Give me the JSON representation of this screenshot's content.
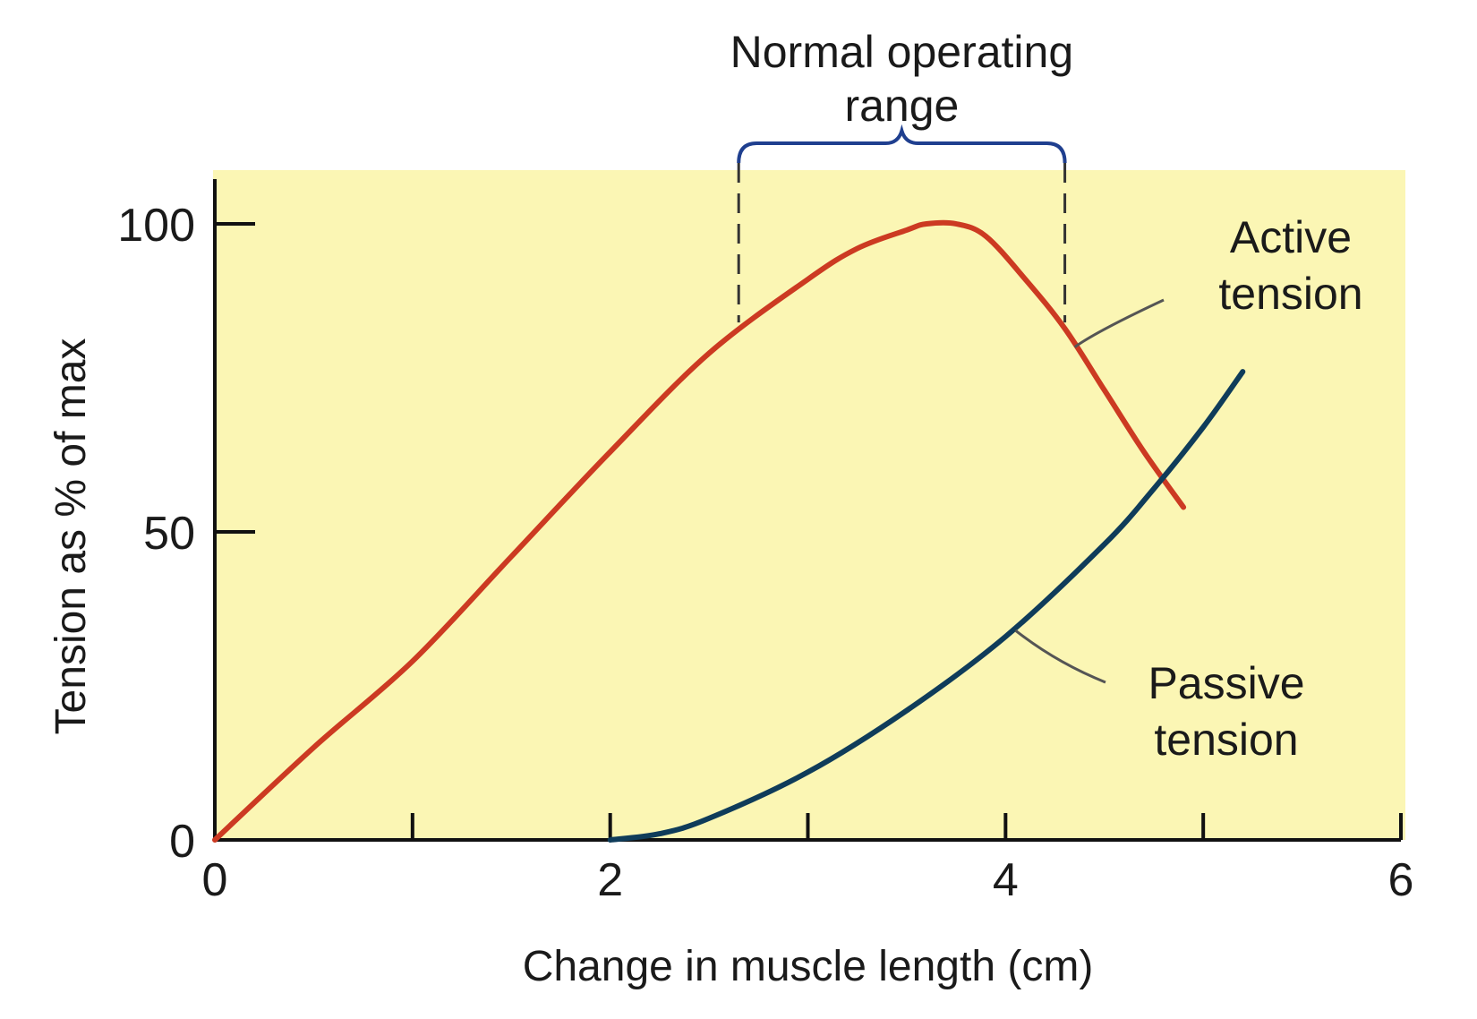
{
  "chart_data": {
    "type": "line",
    "title": "",
    "xlabel": "Change in muscle length (cm)",
    "ylabel": "Tension as % of max",
    "xlim": [
      0,
      6
    ],
    "ylim": [
      0,
      100
    ],
    "x_ticks": [
      0,
      2,
      4,
      6
    ],
    "x_minor_ticks": [
      1,
      3,
      5
    ],
    "y_ticks": [
      0,
      50,
      100
    ],
    "grid": false,
    "legend": "none",
    "background_color": "#fbf6b4",
    "series": [
      {
        "name": "Active tension",
        "color": "#cc3a22",
        "points": [
          [
            0,
            0
          ],
          [
            0.5,
            15
          ],
          [
            1,
            29
          ],
          [
            1.5,
            46
          ],
          [
            2,
            63
          ],
          [
            2.5,
            79
          ],
          [
            3,
            91
          ],
          [
            3.25,
            96
          ],
          [
            3.5,
            99
          ],
          [
            3.6,
            100
          ],
          [
            3.75,
            100
          ],
          [
            3.9,
            98
          ],
          [
            4.1,
            91
          ],
          [
            4.3,
            83
          ],
          [
            4.5,
            73
          ],
          [
            4.7,
            63
          ],
          [
            4.9,
            54
          ]
        ]
      },
      {
        "name": "Passive tension",
        "color": "#0f3c5a",
        "points": [
          [
            2,
            0
          ],
          [
            2.25,
            1
          ],
          [
            2.5,
            3.5
          ],
          [
            3,
            11
          ],
          [
            3.5,
            21
          ],
          [
            4,
            33
          ],
          [
            4.5,
            48
          ],
          [
            4.75,
            57
          ],
          [
            5,
            67
          ],
          [
            5.2,
            76
          ]
        ]
      }
    ],
    "annotations": {
      "range_label": [
        "Normal operating",
        "range"
      ],
      "range_bounds": [
        2.65,
        4.3
      ],
      "active_label": [
        "Active",
        "tension"
      ],
      "passive_label": [
        "Passive",
        "tension"
      ]
    }
  }
}
